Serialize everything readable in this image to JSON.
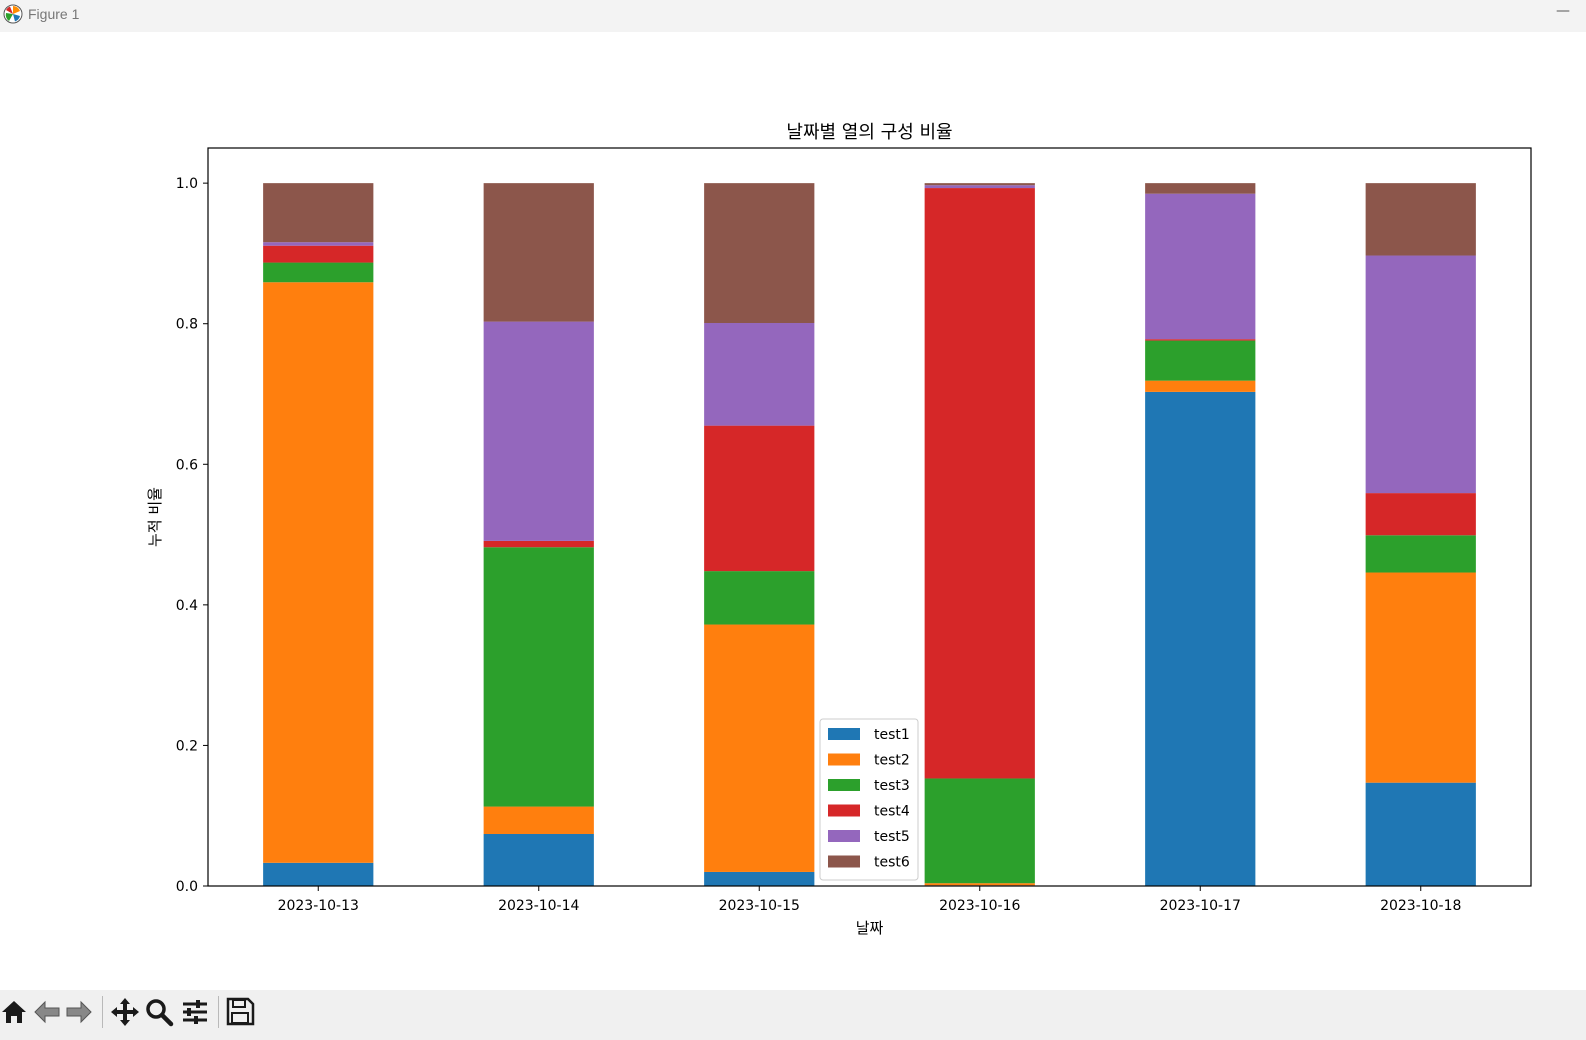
{
  "window": {
    "title": "Figure 1",
    "minimize_glyph": "—"
  },
  "toolbar": {
    "buttons": [
      {
        "name": "home-icon"
      },
      {
        "name": "back-arrow-icon"
      },
      {
        "name": "forward-arrow-icon"
      },
      {
        "name": "pan-move-icon"
      },
      {
        "name": "zoom-magnifier-icon"
      },
      {
        "name": "configure-subplots-icon"
      },
      {
        "name": "save-floppy-icon"
      }
    ]
  },
  "chart_data": {
    "type": "bar",
    "stacked": true,
    "title": "날짜별 열의 구성 비율",
    "xlabel": "날짜",
    "ylabel": "누적 비율",
    "ylim": [
      0,
      1.05
    ],
    "yticks": [
      "0.0",
      "0.2",
      "0.4",
      "0.6",
      "0.8",
      "1.0"
    ],
    "categories": [
      "2023-10-13",
      "2023-10-14",
      "2023-10-15",
      "2023-10-16",
      "2023-10-17",
      "2023-10-18"
    ],
    "series": [
      {
        "name": "test1",
        "color": "#1f77b4",
        "values": [
          0.033,
          0.074,
          0.02,
          0.001,
          0.703,
          0.147
        ]
      },
      {
        "name": "test2",
        "color": "#ff7f0e",
        "values": [
          0.826,
          0.039,
          0.352,
          0.003,
          0.016,
          0.299
        ]
      },
      {
        "name": "test3",
        "color": "#2ca02c",
        "values": [
          0.028,
          0.369,
          0.076,
          0.149,
          0.057,
          0.053
        ]
      },
      {
        "name": "test4",
        "color": "#d62728",
        "values": [
          0.024,
          0.009,
          0.207,
          0.84,
          0.002,
          0.06
        ]
      },
      {
        "name": "test5",
        "color": "#9467bd",
        "values": [
          0.005,
          0.312,
          0.146,
          0.004,
          0.207,
          0.338
        ]
      },
      {
        "name": "test6",
        "color": "#8c564b",
        "values": [
          0.084,
          0.197,
          0.199,
          0.003,
          0.015,
          0.103
        ]
      }
    ],
    "legend": "lower-center",
    "grid": false
  }
}
